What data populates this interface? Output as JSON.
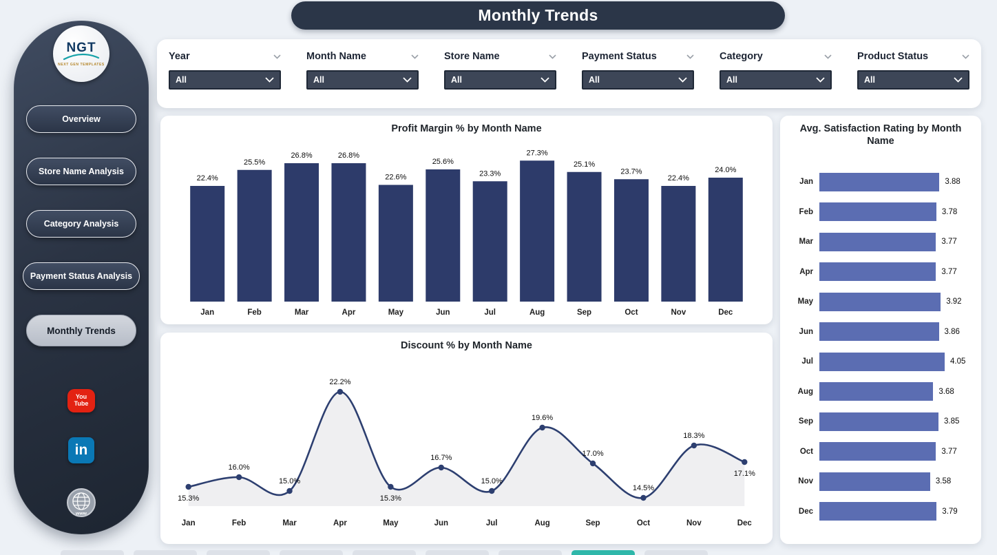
{
  "page_title": "Monthly Trends",
  "sidebar": {
    "logo": {
      "text": "NGT",
      "subtext": "NEXT GEN TEMPLATES"
    },
    "items": [
      {
        "label": "Overview",
        "active": false
      },
      {
        "label": "Store Name Analysis",
        "active": false
      },
      {
        "label": "Category Analysis",
        "active": false
      },
      {
        "label": "Payment Status Analysis",
        "active": false
      },
      {
        "label": "Monthly Trends",
        "active": true
      }
    ],
    "social_icons": [
      "youtube-icon",
      "linkedin-icon",
      "website-icon"
    ],
    "youtube_label_top": "You",
    "youtube_label_bottom": "Tube",
    "linkedin_label": "in"
  },
  "filters": [
    {
      "label": "Year",
      "value": "All"
    },
    {
      "label": "Month Name",
      "value": "All"
    },
    {
      "label": "Store Name",
      "value": "All"
    },
    {
      "label": "Payment Status",
      "value": "All"
    },
    {
      "label": "Category",
      "value": "All"
    },
    {
      "label": "Product Status",
      "value": "All"
    }
  ],
  "colors": {
    "bar": "#2d3b6a",
    "line": "#2d3f70",
    "area": "#ebebed",
    "hbar": "#5b6db2",
    "banner": "#2b3648",
    "accent_tab": "#2fb7aa"
  },
  "bottom_tabs": {
    "count": 9,
    "active_index": 7
  },
  "chart_data": [
    {
      "type": "bar",
      "title": "Profit Margin % by Month Name",
      "categories": [
        "Jan",
        "Feb",
        "Mar",
        "Apr",
        "May",
        "Jun",
        "Jul",
        "Aug",
        "Sep",
        "Oct",
        "Nov",
        "Dec"
      ],
      "values": [
        22.4,
        25.5,
        26.8,
        26.8,
        22.6,
        25.6,
        23.3,
        27.3,
        25.1,
        23.7,
        22.4,
        24.0
      ],
      "value_suffix": "%",
      "xlabel": "Month Name",
      "ylabel": "Profit Margin %",
      "ylim": [
        0,
        30
      ],
      "grid": false,
      "legend": false,
      "data_labels": true
    },
    {
      "type": "line",
      "title": "Discount % by Month Name",
      "categories": [
        "Jan",
        "Feb",
        "Mar",
        "Apr",
        "May",
        "Jun",
        "Jul",
        "Aug",
        "Sep",
        "Oct",
        "Nov",
        "Dec"
      ],
      "values": [
        15.3,
        16.0,
        15.0,
        22.2,
        15.3,
        16.7,
        15.0,
        19.6,
        17.0,
        14.5,
        18.3,
        17.1
      ],
      "value_suffix": "%",
      "xlabel": "Month Name",
      "ylabel": "Discount %",
      "ylim": [
        13.5,
        23
      ],
      "smooth": true,
      "area": true,
      "markers": true,
      "grid": false,
      "legend": false,
      "data_labels": true,
      "label_positions": [
        "below",
        "above",
        "above",
        "above",
        "below",
        "above",
        "above",
        "above",
        "above",
        "above",
        "above",
        "below"
      ]
    },
    {
      "type": "bar-horizontal",
      "title": "Avg. Satisfaction Rating by Month Name",
      "categories": [
        "Jan",
        "Feb",
        "Mar",
        "Apr",
        "May",
        "Jun",
        "Jul",
        "Aug",
        "Sep",
        "Oct",
        "Nov",
        "Dec"
      ],
      "values": [
        3.88,
        3.78,
        3.77,
        3.77,
        3.92,
        3.86,
        4.05,
        3.68,
        3.85,
        3.77,
        3.58,
        3.79
      ],
      "xlabel": "Avg. Satisfaction Rating",
      "ylabel": "Month Name",
      "xlim": [
        0,
        4.05
      ],
      "grid": false,
      "legend": false,
      "data_labels": true
    }
  ]
}
